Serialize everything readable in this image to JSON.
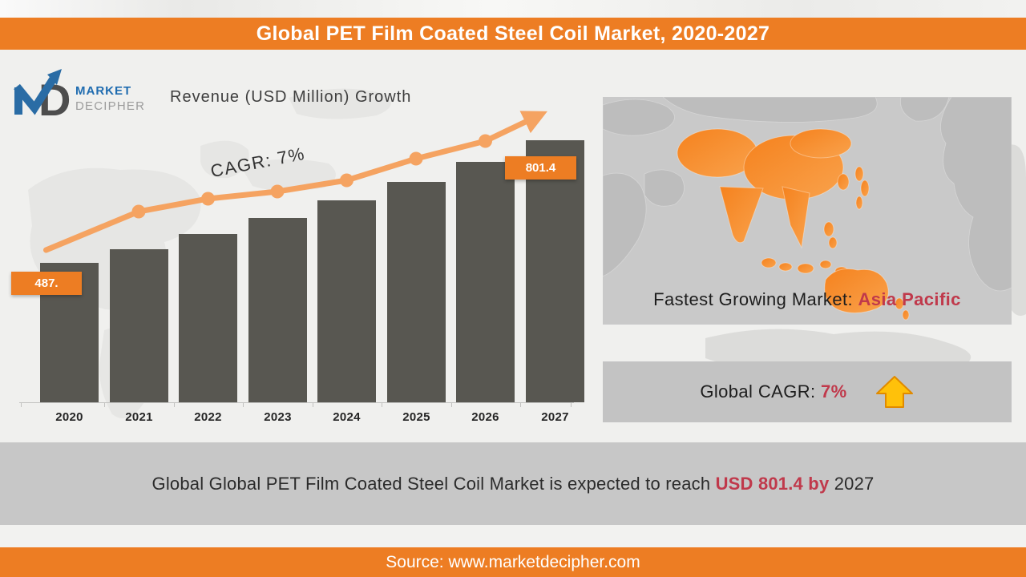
{
  "header": {
    "title": "Global PET Film Coated Steel Coil Market, 2020-2027"
  },
  "logo": {
    "line1": "MARKET",
    "line2": "DECIPHER"
  },
  "chart": {
    "heading": "Revenue (USD Million) Growth",
    "cagr_annotation": "CAGR: 7%",
    "first_value_label": "487.",
    "last_value_label": "801.4"
  },
  "chart_data": {
    "type": "bar",
    "title": "Revenue (USD Million) Growth",
    "categories": [
      "2020",
      "2021",
      "2022",
      "2023",
      "2024",
      "2025",
      "2026",
      "2027"
    ],
    "values": [
      487.4,
      523,
      562,
      603,
      647,
      695,
      746,
      801.4
    ],
    "values_note": "2020 and 2027 labeled on chart (487., 801.4); intermediate values estimated from bar heights at CAGR 7%",
    "data_labels": {
      "2020": "487.",
      "2027": "801.4"
    },
    "annotation": "CAGR: 7%",
    "trendline": {
      "style": "orange line with dot markers and arrow head",
      "label": "CAGR: 7%"
    },
    "xlabel": "",
    "ylabel": "Revenue (USD Million)",
    "grid": false,
    "legend": false
  },
  "map_panel": {
    "caption_prefix": "Fastest Growing Market: ",
    "caption_highlight": "Asia Pacific"
  },
  "cagr_panel": {
    "prefix": "Global CAGR: ",
    "value": "7%"
  },
  "summary": {
    "prefix": "Global Global PET Film Coated Steel Coil Market is expected to reach ",
    "highlight": "USD 801.4  by",
    "suffix": " 2027"
  },
  "footer": {
    "text": "Source: www.marketdecipher.com"
  },
  "colors": {
    "accent_orange": "#ED7D23",
    "trend_orange": "#F5A361",
    "bar_gray": "#585751",
    "highlight_red": "#C0394B",
    "gold_arrow": "#FFC10A",
    "gold_arrow_border": "#E08A00",
    "panel_gray": "#C9C9C9",
    "map_land_gray": "#BDBDBD",
    "apac_orange_dark": "#F5821E",
    "apac_orange_light": "#F9A24C"
  }
}
